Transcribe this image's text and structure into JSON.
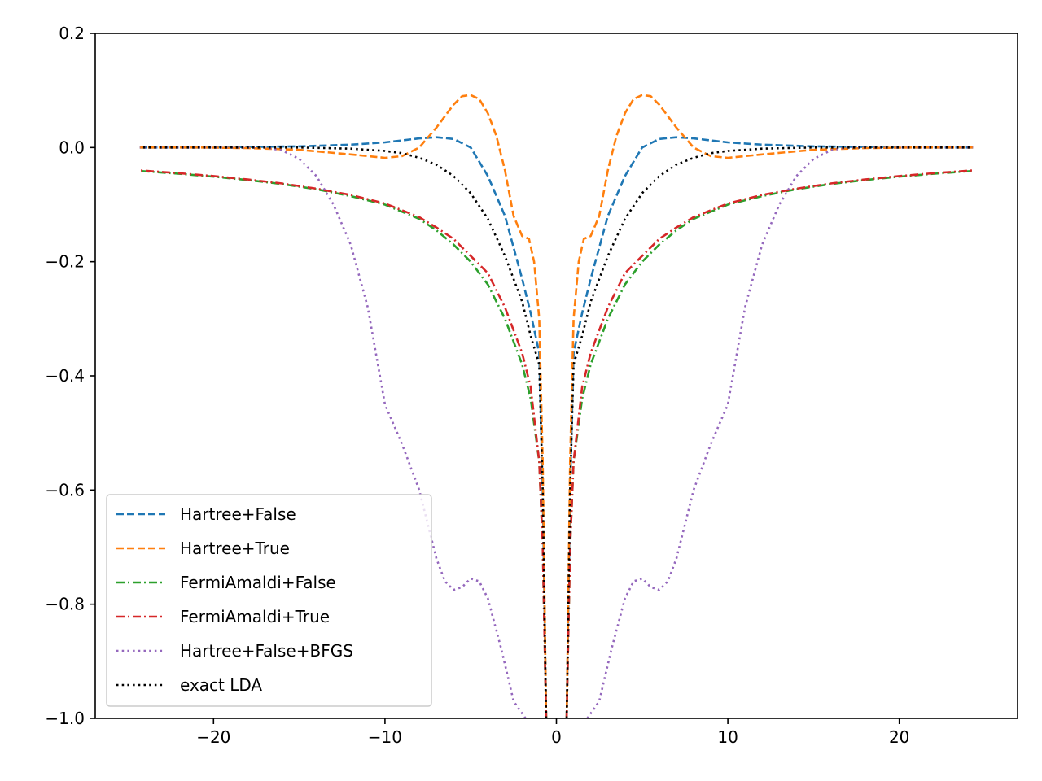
{
  "chart_data": {
    "type": "line",
    "title": "",
    "xlabel": "",
    "ylabel": "",
    "xlim": [
      -26.9,
      26.9
    ],
    "ylim": [
      -1.0,
      0.2
    ],
    "xticks": [
      -20,
      -10,
      0,
      10,
      20
    ],
    "xtick_labels": [
      "−20",
      "−10",
      "0",
      "10",
      "20"
    ],
    "yticks": [
      0.2,
      0.0,
      -0.2,
      -0.4,
      -0.6,
      -0.8,
      -1.0
    ],
    "ytick_labels": [
      "0.2",
      "0.0",
      "−0.2",
      "−0.4",
      "−0.6",
      "−0.8",
      "−1.0"
    ],
    "grid": false,
    "legend_position": "lower-left",
    "symmetric_about_x0": true,
    "series": [
      {
        "name": "Hartree+False",
        "color": "#1f77b4",
        "linestyle": "dashed",
        "x": [
          0.6,
          0.8,
          1.0,
          1.5,
          2.0,
          3.0,
          4.0,
          5.0,
          6.0,
          7.0,
          8.0,
          10.0,
          12.0,
          15.0,
          18.0,
          21.0,
          24.3
        ],
        "y": [
          -1.0,
          -0.6,
          -0.36,
          -0.29,
          -0.23,
          -0.12,
          -0.05,
          0.0,
          0.015,
          0.018,
          0.016,
          0.009,
          0.005,
          0.002,
          0.001,
          0.0,
          0.0
        ]
      },
      {
        "name": "Hartree+True",
        "color": "#ff7f0e",
        "linestyle": "dashed",
        "x": [
          0.6,
          0.8,
          1.0,
          1.3,
          1.6,
          2.0,
          2.5,
          3.0,
          3.5,
          4.0,
          4.5,
          5.0,
          5.5,
          6.0,
          7.0,
          8.0,
          9.0,
          10.0,
          12.0,
          15.0,
          18.0,
          21.0,
          24.3
        ],
        "y": [
          -1.0,
          -0.55,
          -0.3,
          -0.2,
          -0.16,
          -0.155,
          -0.12,
          -0.04,
          0.02,
          0.06,
          0.085,
          0.092,
          0.09,
          0.075,
          0.035,
          0.0,
          -0.015,
          -0.018,
          -0.012,
          -0.004,
          -0.001,
          0.0,
          0.0
        ]
      },
      {
        "name": "FermiAmaldi+False",
        "color": "#2ca02c",
        "linestyle": "dashdot",
        "x": [
          0.6,
          0.8,
          1.0,
          1.5,
          2.0,
          3.0,
          4.0,
          5.0,
          6.0,
          7.0,
          8.0,
          10.0,
          12.0,
          14.0,
          16.0,
          18.0,
          20.0,
          22.0,
          24.3
        ],
        "y": [
          -1.0,
          -0.7,
          -0.55,
          -0.44,
          -0.38,
          -0.3,
          -0.24,
          -0.2,
          -0.17,
          -0.145,
          -0.125,
          -0.1,
          -0.085,
          -0.073,
          -0.064,
          -0.057,
          -0.051,
          -0.046,
          -0.041
        ]
      },
      {
        "name": "FermiAmaldi+True",
        "color": "#d62728",
        "linestyle": "dashdot",
        "x": [
          0.6,
          0.8,
          1.0,
          1.5,
          2.0,
          3.0,
          4.0,
          5.0,
          6.0,
          7.0,
          8.0,
          10.0,
          12.0,
          14.0,
          16.0,
          18.0,
          20.0,
          22.0,
          24.3
        ],
        "y": [
          -1.0,
          -0.7,
          -0.55,
          -0.42,
          -0.36,
          -0.28,
          -0.22,
          -0.19,
          -0.16,
          -0.14,
          -0.122,
          -0.098,
          -0.083,
          -0.072,
          -0.063,
          -0.056,
          -0.05,
          -0.045,
          -0.04
        ]
      },
      {
        "name": "Hartree+False+BFGS",
        "color": "#9467bd",
        "linestyle": "dotted",
        "x": [
          1.8,
          2.5,
          3.2,
          4.0,
          4.5,
          5.0,
          5.5,
          6.0,
          6.5,
          7.0,
          8.0,
          9.0,
          10.0,
          11.0,
          12.0,
          13.0,
          14.0,
          15.0,
          16.0,
          17.0,
          18.0,
          19.0,
          20.0,
          22.0,
          24.3
        ],
        "y": [
          -1.0,
          -0.97,
          -0.88,
          -0.79,
          -0.76,
          -0.755,
          -0.77,
          -0.775,
          -0.76,
          -0.72,
          -0.6,
          -0.52,
          -0.45,
          -0.28,
          -0.17,
          -0.1,
          -0.05,
          -0.02,
          -0.005,
          0.0,
          0.0,
          0.0,
          0.0,
          0.0,
          0.0
        ]
      },
      {
        "name": "exact LDA",
        "color": "#000000",
        "linestyle": "dotted",
        "x": [
          0.6,
          0.8,
          1.0,
          1.5,
          2.0,
          3.0,
          4.0,
          5.0,
          6.0,
          7.0,
          8.0,
          9.0,
          10.0,
          12.0,
          15.0,
          18.0,
          21.0,
          24.3
        ],
        "y": [
          -1.0,
          -0.6,
          -0.38,
          -0.33,
          -0.27,
          -0.19,
          -0.125,
          -0.08,
          -0.05,
          -0.03,
          -0.018,
          -0.01,
          -0.006,
          -0.002,
          0.0,
          0.0,
          0.0,
          0.0
        ]
      }
    ]
  }
}
